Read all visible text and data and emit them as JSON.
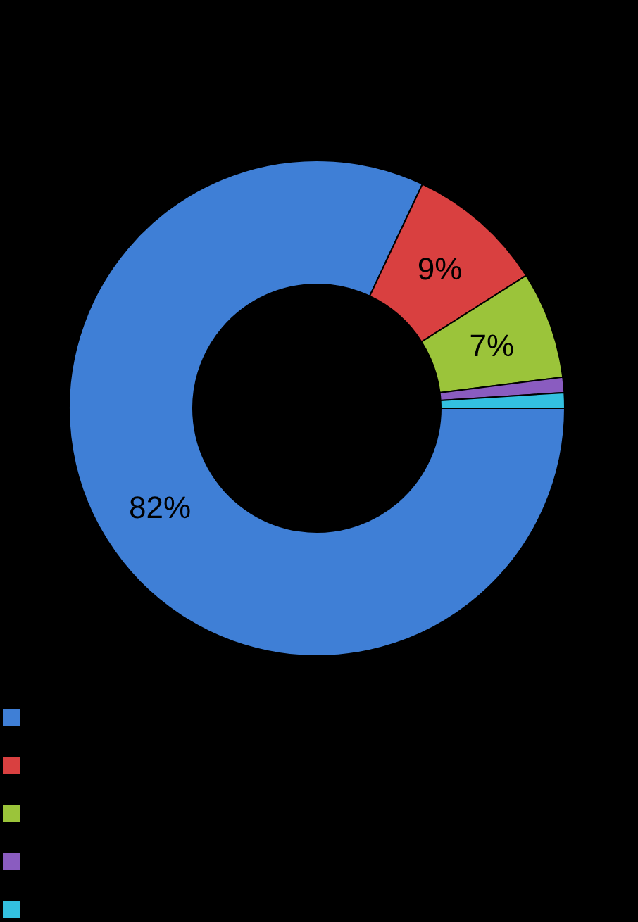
{
  "chart_data": {
    "type": "donut",
    "categories": [
      null,
      null,
      null,
      null,
      null
    ],
    "values": [
      82,
      9,
      7,
      1,
      1
    ],
    "value_labels": [
      "82%",
      "9%",
      "7%",
      null,
      null
    ],
    "colors": [
      "#3f7fd6",
      "#d94040",
      "#9bc43a",
      "#8a5cc0",
      "#33c0e0"
    ]
  }
}
